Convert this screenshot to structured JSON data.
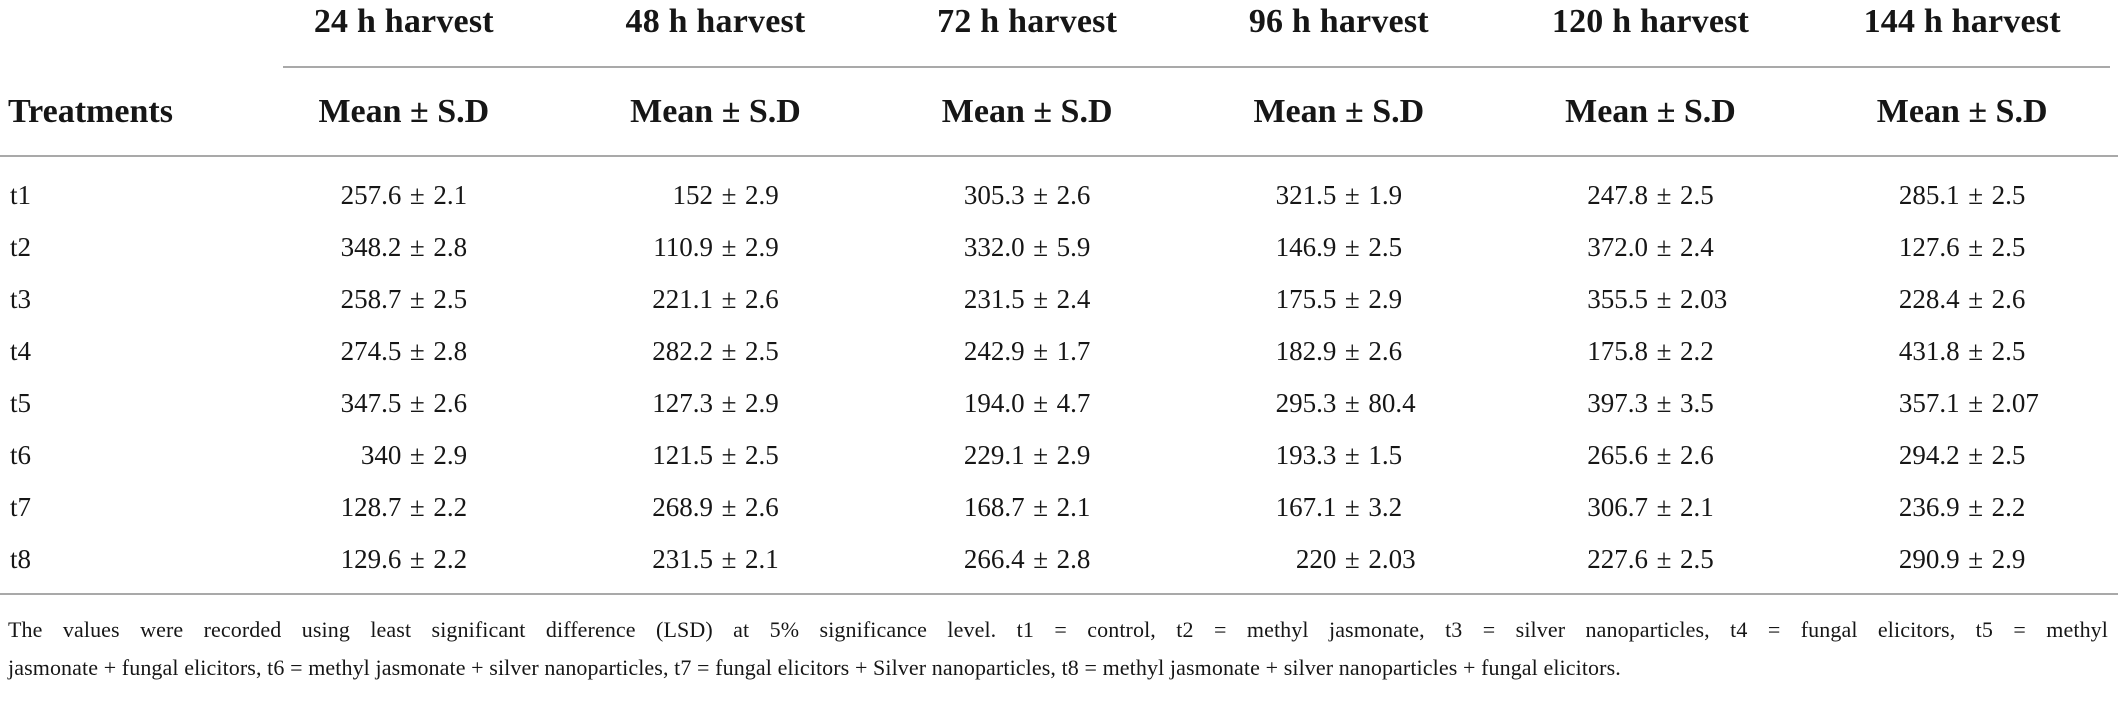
{
  "table": {
    "corner_header": "Treatments",
    "plus_minus": "±",
    "columns": [
      {
        "harvest_label": "24 h harvest",
        "subheader": "Mean ± S.D"
      },
      {
        "harvest_label": "48 h harvest",
        "subheader": "Mean ± S.D"
      },
      {
        "harvest_label": "72 h harvest",
        "subheader": "Mean ± S.D"
      },
      {
        "harvest_label": "96 h harvest",
        "subheader": "Mean ± S.D"
      },
      {
        "harvest_label": "120 h harvest",
        "subheader": "Mean ± S.D"
      },
      {
        "harvest_label": "144 h harvest",
        "subheader": "Mean ± S.D"
      }
    ],
    "rows": [
      {
        "label": "t1",
        "values": [
          {
            "mean": "257.6",
            "sd": "2.1"
          },
          {
            "mean": "152",
            "sd": "2.9"
          },
          {
            "mean": "305.3",
            "sd": "2.6"
          },
          {
            "mean": "321.5",
            "sd": "1.9"
          },
          {
            "mean": "247.8",
            "sd": "2.5"
          },
          {
            "mean": "285.1",
            "sd": "2.5"
          }
        ]
      },
      {
        "label": "t2",
        "values": [
          {
            "mean": "348.2",
            "sd": "2.8"
          },
          {
            "mean": "110.9",
            "sd": "2.9"
          },
          {
            "mean": "332.0",
            "sd": "5.9"
          },
          {
            "mean": "146.9",
            "sd": "2.5"
          },
          {
            "mean": "372.0",
            "sd": "2.4"
          },
          {
            "mean": "127.6",
            "sd": "2.5"
          }
        ]
      },
      {
        "label": "t3",
        "values": [
          {
            "mean": "258.7",
            "sd": "2.5"
          },
          {
            "mean": "221.1",
            "sd": "2.6"
          },
          {
            "mean": "231.5",
            "sd": "2.4"
          },
          {
            "mean": "175.5",
            "sd": "2.9"
          },
          {
            "mean": "355.5",
            "sd": "2.03"
          },
          {
            "mean": "228.4",
            "sd": "2.6"
          }
        ]
      },
      {
        "label": "t4",
        "values": [
          {
            "mean": "274.5",
            "sd": "2.8"
          },
          {
            "mean": "282.2",
            "sd": "2.5"
          },
          {
            "mean": "242.9",
            "sd": "1.7"
          },
          {
            "mean": "182.9",
            "sd": "2.6"
          },
          {
            "mean": "175.8",
            "sd": "2.2"
          },
          {
            "mean": "431.8",
            "sd": "2.5"
          }
        ]
      },
      {
        "label": "t5",
        "values": [
          {
            "mean": "347.5",
            "sd": "2.6"
          },
          {
            "mean": "127.3",
            "sd": "2.9"
          },
          {
            "mean": "194.0",
            "sd": "4.7"
          },
          {
            "mean": "295.3",
            "sd": "80.4"
          },
          {
            "mean": "397.3",
            "sd": "3.5"
          },
          {
            "mean": "357.1",
            "sd": "2.07"
          }
        ]
      },
      {
        "label": "t6",
        "values": [
          {
            "mean": "340",
            "sd": "2.9"
          },
          {
            "mean": "121.5",
            "sd": "2.5"
          },
          {
            "mean": "229.1",
            "sd": "2.9"
          },
          {
            "mean": "193.3",
            "sd": "1.5"
          },
          {
            "mean": "265.6",
            "sd": "2.6"
          },
          {
            "mean": "294.2",
            "sd": "2.5"
          }
        ]
      },
      {
        "label": "t7",
        "values": [
          {
            "mean": "128.7",
            "sd": "2.2"
          },
          {
            "mean": "268.9",
            "sd": "2.6"
          },
          {
            "mean": "168.7",
            "sd": "2.1"
          },
          {
            "mean": "167.1",
            "sd": "3.2"
          },
          {
            "mean": "306.7",
            "sd": "2.1"
          },
          {
            "mean": "236.9",
            "sd": "2.2"
          }
        ]
      },
      {
        "label": "t8",
        "values": [
          {
            "mean": "129.6",
            "sd": "2.2"
          },
          {
            "mean": "231.5",
            "sd": "2.1"
          },
          {
            "mean": "266.4",
            "sd": "2.8"
          },
          {
            "mean": "220",
            "sd": "2.03"
          },
          {
            "mean": "227.6",
            "sd": "2.5"
          },
          {
            "mean": "290.9",
            "sd": "2.9"
          }
        ]
      }
    ]
  },
  "footnote": {
    "lines": [
      "The values were recorded using least significant difference (LSD) at 5% significance level. t1 = control, t2 = methyl jasmonate, t3 = silver nanoparticles, t4 = fungal elicitors, t5 = methyl",
      "jasmonate + fungal elicitors, t6 = methyl jasmonate + silver nanoparticles, t7 = fungal elicitors + Silver nanoparticles, t8 = methyl jasmonate + silver nanoparticles + fungal elicitors."
    ]
  },
  "colors": {
    "rule": "#a9a9a9",
    "text": "#161616",
    "background": "#ffffff"
  }
}
